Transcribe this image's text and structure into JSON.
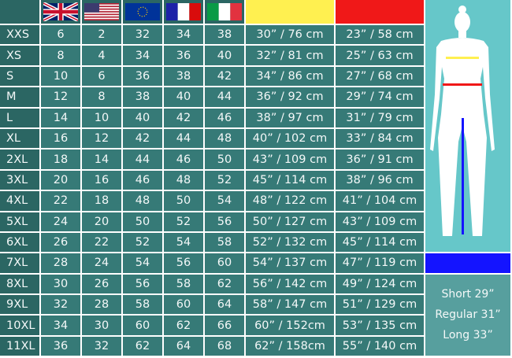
{
  "colors": {
    "waist": "#fff050",
    "hip": "#f01818",
    "inseam": "#1414ff"
  },
  "headers": [
    "uk-flag",
    "us-flag",
    "eu-flag",
    "france-flag",
    "italy-flag",
    "waist-color",
    "hip-color"
  ],
  "rows": [
    [
      "XXS",
      "6",
      "2",
      "32",
      "34",
      "38",
      "30” / 76 cm",
      "23” / 58 cm"
    ],
    [
      "XS",
      "8",
      "4",
      "34",
      "36",
      "40",
      "32” / 81 cm",
      "25” / 63 cm"
    ],
    [
      "S",
      "10",
      "6",
      "36",
      "38",
      "42",
      "34” / 86 cm",
      "27” / 68 cm"
    ],
    [
      "M",
      "12",
      "8",
      "38",
      "40",
      "44",
      "36” / 92 cm",
      "29” / 74 cm"
    ],
    [
      "L",
      "14",
      "10",
      "40",
      "42",
      "46",
      "38” / 97 cm",
      "31” / 79 cm"
    ],
    [
      "XL",
      "16",
      "12",
      "42",
      "44",
      "48",
      "40” / 102 cm",
      "33” / 84 cm"
    ],
    [
      "2XL",
      "18",
      "14",
      "44",
      "46",
      "50",
      "43” / 109 cm",
      "36” / 91 cm"
    ],
    [
      "3XL",
      "20",
      "16",
      "46",
      "48",
      "52",
      "45” / 114 cm",
      "38” / 96 cm"
    ],
    [
      "4XL",
      "22",
      "18",
      "48",
      "50",
      "54",
      "48” / 122 cm",
      "41” / 104 cm"
    ],
    [
      "5XL",
      "24",
      "20",
      "50",
      "52",
      "56",
      "50” / 127 cm",
      "43” / 109 cm"
    ],
    [
      "6XL",
      "26",
      "22",
      "52",
      "54",
      "58",
      "52” / 132 cm",
      "45” / 114 cm"
    ],
    [
      "7XL",
      "28",
      "24",
      "54",
      "56",
      "60",
      "54” / 137 cm",
      "47” / 119 cm"
    ],
    [
      "8XL",
      "30",
      "26",
      "56",
      "58",
      "62",
      "56” / 142 cm",
      "49” / 124 cm"
    ],
    [
      "9XL",
      "32",
      "28",
      "58",
      "60",
      "64",
      "58” / 147 cm",
      "51” / 129 cm"
    ],
    [
      "10XL",
      "34",
      "30",
      "60",
      "62",
      "66",
      "60” / 152cm",
      "53” / 135 cm"
    ],
    [
      "11XL",
      "36",
      "32",
      "62",
      "64",
      "68",
      "62” / 158cm",
      "55” / 140 cm"
    ]
  ],
  "inseam": [
    "Short 29”",
    "Regular 31”",
    "Long 33”"
  ]
}
